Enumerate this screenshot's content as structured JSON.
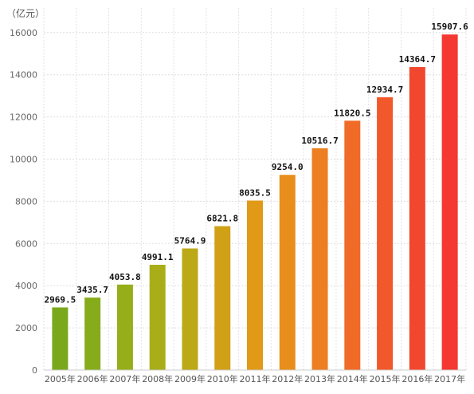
{
  "chart_data": {
    "type": "bar",
    "unit_label": "（亿元）",
    "categories": [
      "2005年",
      "2006年",
      "2007年",
      "2008年",
      "2009年",
      "2010年",
      "2011年",
      "2012年",
      "2013年",
      "2014年",
      "2015年",
      "2016年",
      "2017年"
    ],
    "values": [
      2969.5,
      3435.7,
      4053.8,
      4991.1,
      5764.9,
      6821.8,
      8035.5,
      9254.0,
      10516.7,
      11820.5,
      12934.7,
      14364.7,
      15907.6
    ],
    "data_labels": [
      "2969.5",
      "3435.7",
      "4053.8",
      "4991.1",
      "5764.9",
      "6821.8",
      "8035.5",
      "9254.0",
      "10516.7",
      "11820.5",
      "12934.7",
      "14364.7",
      "15907.6"
    ],
    "ylim": [
      0,
      17000
    ],
    "yticks": [
      0,
      2000,
      4000,
      6000,
      8000,
      10000,
      12000,
      14000,
      16000
    ],
    "ytick_labels": [
      "0",
      "2000",
      "4000",
      "6000",
      "8000",
      "10000",
      "12000",
      "14000",
      "16000"
    ],
    "grid": true,
    "bar_colors": [
      "#7aa81c",
      "#86ac1b",
      "#96ae19",
      "#a8ad18",
      "#bca917",
      "#d0a017",
      "#e09a18",
      "#e88e1d",
      "#ed7e22",
      "#f06a28",
      "#f1582b",
      "#f2472f",
      "#f43832"
    ]
  }
}
